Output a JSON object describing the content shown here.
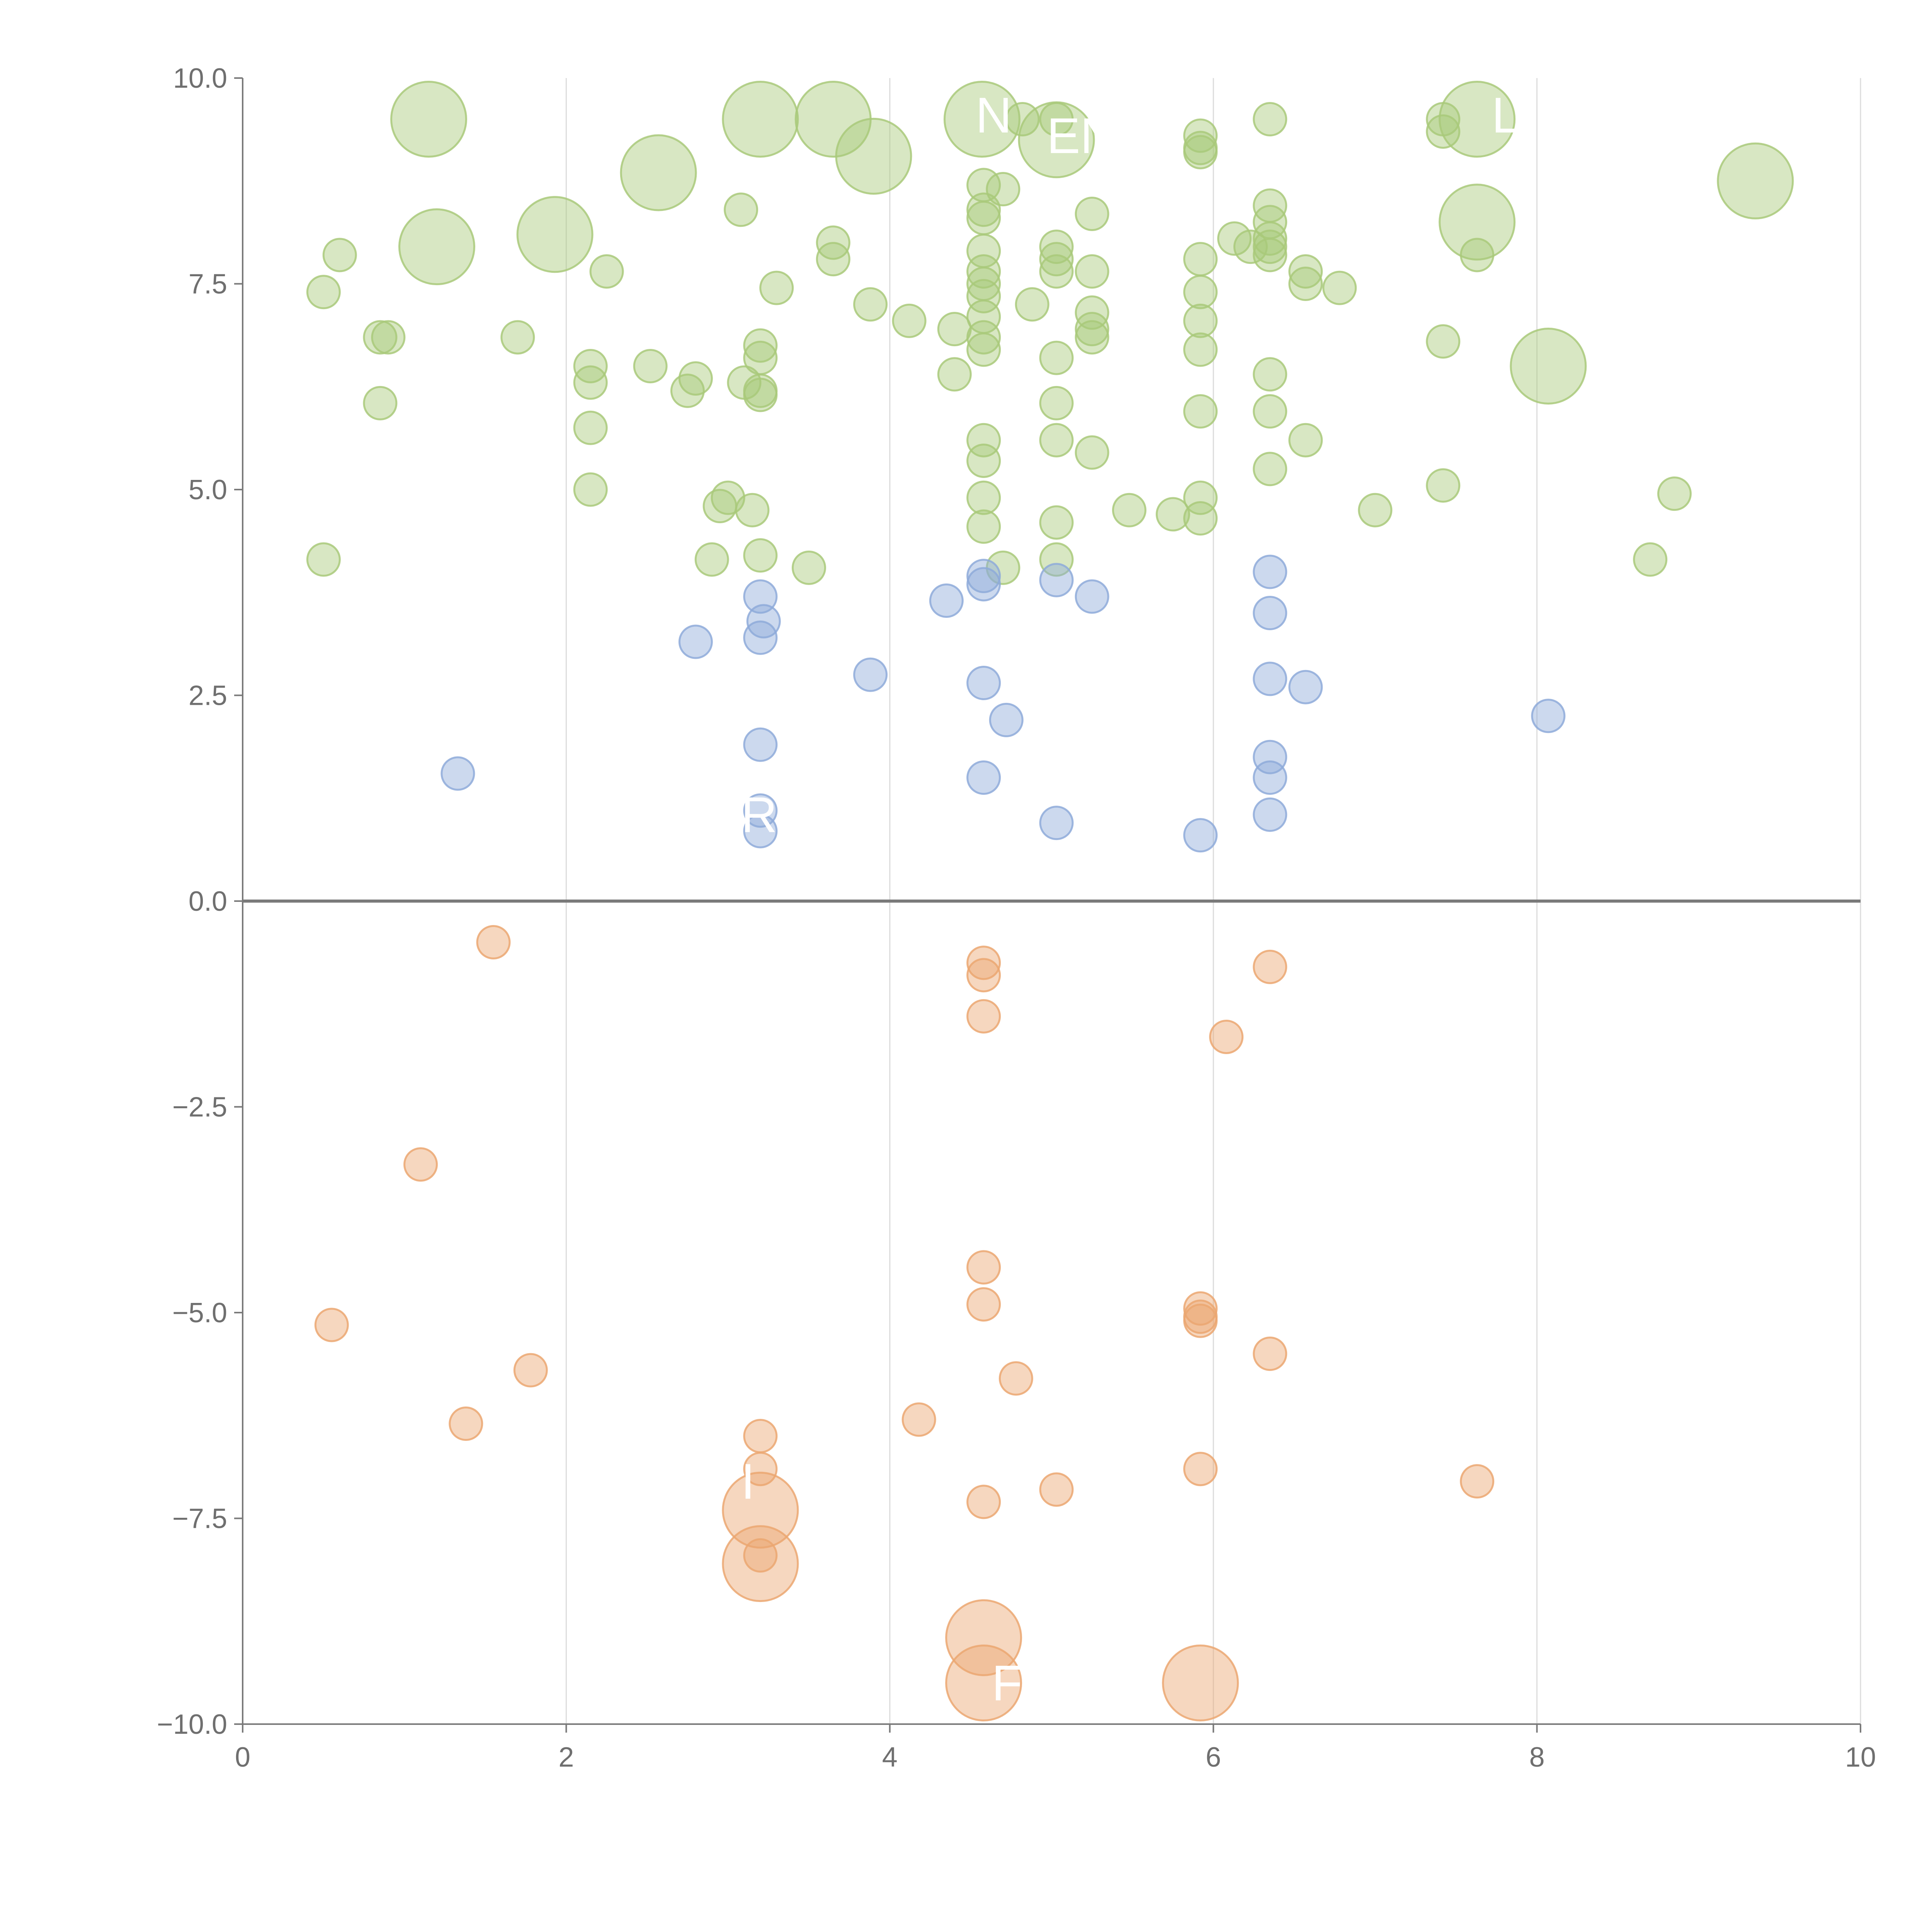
{
  "chart_data": {
    "type": "scatter",
    "title": "",
    "xlabel": "",
    "ylabel": "",
    "xlim": [
      0,
      10
    ],
    "ylim": [
      -10,
      10
    ],
    "x_ticks": [
      "0",
      "2",
      "4",
      "6",
      "8",
      "10"
    ],
    "x_tick_values": [
      0,
      2,
      4,
      6,
      8,
      10
    ],
    "y_ticks": [
      "10.0",
      "7.5",
      "5.0",
      "2.5",
      "0.0",
      "−2.5",
      "−5.0",
      "−7.5",
      "−10.0"
    ],
    "y_tick_values": [
      10,
      7.5,
      5,
      2.5,
      0,
      -2.5,
      -5,
      -7.5,
      -10
    ],
    "vertical_gridlines": true,
    "zero_line": true,
    "series": [
      {
        "name": "green",
        "color": "#a9c97a",
        "points": [
          [
            0.5,
            7.4,
            1
          ],
          [
            0.6,
            7.85,
            1
          ],
          [
            0.85,
            6.85,
            1
          ],
          [
            0.9,
            6.85,
            1
          ],
          [
            0.85,
            6.05,
            1
          ],
          [
            0.5,
            4.15,
            1
          ],
          [
            1.15,
            9.5,
            3
          ],
          [
            1.2,
            7.95,
            3
          ],
          [
            1.7,
            6.85,
            1
          ],
          [
            1.93,
            8.1,
            3
          ],
          [
            2.15,
            6.5,
            1
          ],
          [
            2.15,
            6.3,
            1
          ],
          [
            2.15,
            5.75,
            1
          ],
          [
            2.15,
            5.0,
            1
          ],
          [
            2.25,
            7.65,
            1
          ],
          [
            2.52,
            6.5,
            1
          ],
          [
            2.57,
            8.85,
            3
          ],
          [
            2.75,
            6.2,
            1
          ],
          [
            2.8,
            6.35,
            1
          ],
          [
            2.9,
            4.15,
            1
          ],
          [
            2.95,
            4.8,
            1
          ],
          [
            3.0,
            4.9,
            1
          ],
          [
            3.08,
            8.4,
            1
          ],
          [
            3.1,
            6.3,
            1
          ],
          [
            3.15,
            4.75,
            1
          ],
          [
            3.2,
            9.5,
            3
          ],
          [
            3.2,
            6.75,
            1
          ],
          [
            3.2,
            6.6,
            1
          ],
          [
            3.2,
            6.2,
            1
          ],
          [
            3.2,
            6.15,
            1
          ],
          [
            3.2,
            4.2,
            1
          ],
          [
            3.3,
            7.45,
            1
          ],
          [
            3.5,
            4.05,
            1
          ],
          [
            3.65,
            8.0,
            1
          ],
          [
            3.65,
            7.8,
            1
          ],
          [
            3.65,
            9.5,
            3
          ],
          [
            3.88,
            7.25,
            1
          ],
          [
            3.9,
            9.05,
            3
          ],
          [
            4.12,
            7.05,
            1
          ],
          [
            4.4,
            6.95,
            1
          ],
          [
            4.4,
            6.4,
            1
          ],
          [
            4.57,
            9.5,
            3
          ],
          [
            4.58,
            8.7,
            1
          ],
          [
            4.58,
            8.4,
            1
          ],
          [
            4.58,
            8.3,
            1
          ],
          [
            4.58,
            7.9,
            1
          ],
          [
            4.58,
            7.65,
            1
          ],
          [
            4.58,
            7.5,
            1
          ],
          [
            4.58,
            7.35,
            1
          ],
          [
            4.58,
            7.1,
            1
          ],
          [
            4.58,
            6.85,
            1
          ],
          [
            4.58,
            6.7,
            1
          ],
          [
            4.58,
            5.6,
            1
          ],
          [
            4.58,
            5.35,
            1
          ],
          [
            4.58,
            4.9,
            1
          ],
          [
            4.58,
            4.55,
            1
          ],
          [
            4.7,
            8.65,
            1
          ],
          [
            4.7,
            4.05,
            1
          ],
          [
            4.82,
            9.5,
            1
          ],
          [
            4.88,
            7.25,
            1
          ],
          [
            5.03,
            9.5,
            1
          ],
          [
            5.03,
            9.25,
            3
          ],
          [
            5.03,
            7.95,
            1
          ],
          [
            5.03,
            7.8,
            1
          ],
          [
            5.03,
            7.65,
            1
          ],
          [
            5.03,
            6.6,
            1
          ],
          [
            5.03,
            6.05,
            1
          ],
          [
            5.03,
            5.6,
            1
          ],
          [
            5.03,
            4.6,
            1
          ],
          [
            5.03,
            4.15,
            1
          ],
          [
            5.25,
            8.35,
            1
          ],
          [
            5.25,
            7.65,
            1
          ],
          [
            5.25,
            7.15,
            1
          ],
          [
            5.25,
            6.95,
            1
          ],
          [
            5.25,
            6.85,
            1
          ],
          [
            5.25,
            5.45,
            1
          ],
          [
            5.48,
            4.75,
            1
          ],
          [
            5.75,
            4.7,
            1
          ],
          [
            5.92,
            9.3,
            1
          ],
          [
            5.92,
            9.15,
            1
          ],
          [
            5.92,
            9.1,
            1
          ],
          [
            5.92,
            7.8,
            1
          ],
          [
            5.92,
            7.4,
            1
          ],
          [
            5.92,
            7.05,
            1
          ],
          [
            5.92,
            6.7,
            1
          ],
          [
            5.92,
            5.95,
            1
          ],
          [
            5.92,
            4.9,
            1
          ],
          [
            5.92,
            4.65,
            1
          ],
          [
            6.13,
            8.05,
            1
          ],
          [
            6.23,
            7.95,
            1
          ],
          [
            6.35,
            9.5,
            1
          ],
          [
            6.35,
            8.45,
            1
          ],
          [
            6.35,
            8.25,
            1
          ],
          [
            6.35,
            8.05,
            1
          ],
          [
            6.35,
            7.95,
            1
          ],
          [
            6.35,
            7.85,
            1
          ],
          [
            6.35,
            6.4,
            1
          ],
          [
            6.35,
            5.95,
            1
          ],
          [
            6.35,
            5.25,
            1
          ],
          [
            6.57,
            7.65,
            1
          ],
          [
            6.57,
            7.5,
            1
          ],
          [
            6.57,
            5.6,
            1
          ],
          [
            6.78,
            7.45,
            1
          ],
          [
            7.0,
            4.75,
            1
          ],
          [
            7.42,
            9.5,
            1
          ],
          [
            7.42,
            9.35,
            1
          ],
          [
            7.42,
            6.8,
            1
          ],
          [
            7.42,
            5.05,
            1
          ],
          [
            7.63,
            9.5,
            3
          ],
          [
            7.63,
            8.25,
            3
          ],
          [
            7.63,
            7.85,
            1
          ],
          [
            8.07,
            6.5,
            3
          ],
          [
            8.7,
            4.15,
            1
          ],
          [
            8.85,
            4.95,
            1
          ],
          [
            9.35,
            8.75,
            3
          ]
        ]
      },
      {
        "name": "blue",
        "color": "#8eaad9",
        "points": [
          [
            1.33,
            1.55,
            1
          ],
          [
            2.8,
            3.15,
            1
          ],
          [
            3.2,
            3.7,
            1
          ],
          [
            3.22,
            3.4,
            1
          ],
          [
            3.2,
            3.2,
            1
          ],
          [
            3.2,
            1.9,
            1
          ],
          [
            3.2,
            1.1,
            1
          ],
          [
            3.2,
            0.85,
            1
          ],
          [
            3.88,
            2.75,
            1
          ],
          [
            4.35,
            3.65,
            1
          ],
          [
            4.58,
            3.95,
            1
          ],
          [
            4.58,
            3.85,
            1
          ],
          [
            4.58,
            2.65,
            1
          ],
          [
            4.58,
            1.5,
            1
          ],
          [
            4.72,
            2.2,
            1
          ],
          [
            5.03,
            3.9,
            1
          ],
          [
            5.03,
            0.95,
            1
          ],
          [
            5.25,
            3.7,
            1
          ],
          [
            5.92,
            0.8,
            1
          ],
          [
            6.35,
            4.0,
            1
          ],
          [
            6.35,
            3.5,
            1
          ],
          [
            6.35,
            2.7,
            1
          ],
          [
            6.35,
            1.75,
            1
          ],
          [
            6.35,
            1.5,
            1
          ],
          [
            6.35,
            1.05,
            1
          ],
          [
            6.57,
            2.6,
            1
          ],
          [
            8.07,
            2.25,
            1
          ]
        ]
      },
      {
        "name": "orange",
        "color": "#eba771",
        "points": [
          [
            0.55,
            -5.15,
            1
          ],
          [
            1.1,
            -3.2,
            1
          ],
          [
            1.38,
            -6.35,
            1
          ],
          [
            1.55,
            -0.5,
            1
          ],
          [
            1.78,
            -5.7,
            1
          ],
          [
            3.2,
            -6.5,
            1
          ],
          [
            3.2,
            -6.9,
            1
          ],
          [
            3.2,
            -7.4,
            3
          ],
          [
            3.2,
            -8.05,
            3
          ],
          [
            3.2,
            -7.95,
            1
          ],
          [
            4.18,
            -6.3,
            1
          ],
          [
            4.58,
            -0.75,
            1
          ],
          [
            4.58,
            -0.9,
            1
          ],
          [
            4.58,
            -1.4,
            1
          ],
          [
            4.58,
            -4.45,
            1
          ],
          [
            4.58,
            -4.9,
            1
          ],
          [
            4.58,
            -7.3,
            1
          ],
          [
            4.58,
            -8.95,
            3
          ],
          [
            4.58,
            -9.5,
            3
          ],
          [
            4.78,
            -5.8,
            1
          ],
          [
            5.03,
            -7.15,
            1
          ],
          [
            5.92,
            -4.95,
            1
          ],
          [
            5.92,
            -5.05,
            1
          ],
          [
            5.92,
            -5.1,
            1
          ],
          [
            5.92,
            -6.9,
            1
          ],
          [
            5.92,
            -9.5,
            3
          ],
          [
            6.08,
            -1.65,
            1
          ],
          [
            6.35,
            -0.8,
            1
          ],
          [
            6.35,
            -5.5,
            1
          ],
          [
            7.63,
            -7.05,
            1
          ]
        ]
      }
    ],
    "labels": [
      {
        "text": "N",
        "x": 4.53,
        "y": 9.55
      },
      {
        "text": "EN",
        "x": 4.97,
        "y": 9.3
      },
      {
        "text": "L",
        "x": 7.72,
        "y": 9.55
      },
      {
        "text": "R",
        "x": 3.08,
        "y": 1.05
      },
      {
        "text": "I",
        "x": 3.08,
        "y": -7.05
      },
      {
        "text": "F",
        "x": 4.63,
        "y": -9.5
      }
    ]
  }
}
